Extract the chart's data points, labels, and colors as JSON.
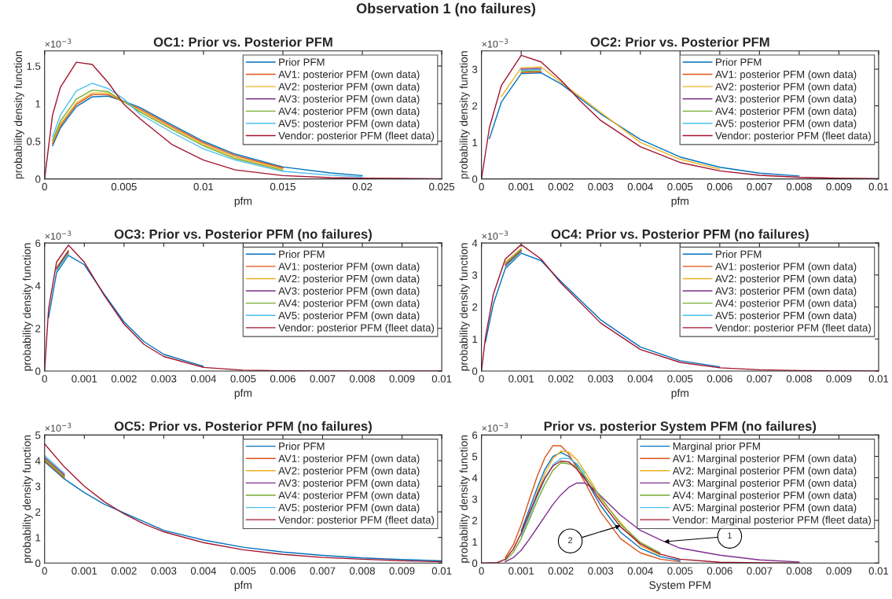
{
  "chart_data": [
    {
      "type": "line",
      "title": "OC1: Prior vs. Posterior PFM",
      "xlabel": "pfm",
      "ylabel": "probability density function",
      "annotations": [
        "Observation 1 (no failures)",
        "×10$^{−3}$"
      ],
      "xlim": [
        0,
        0.025
      ],
      "xticks": [
        0,
        0.005,
        0.01,
        0.015,
        0.02,
        0.025
      ],
      "ylim": [
        0,
        1.7
      ],
      "yticks": [
        0,
        0.5,
        1,
        1.5
      ],
      "legend": "top right",
      "grid": false,
      "x": [
        0,
        0.0005,
        0.001,
        0.002,
        0.003,
        0.004,
        0.005,
        0.006,
        0.008,
        0.01,
        0.012,
        0.015,
        0.018,
        0.02,
        0.025
      ],
      "series": [
        {
          "name": "Prior PFM",
          "color": "#0072bd",
          "values": [
            null,
            0.44,
            0.68,
            0.96,
            1.09,
            1.1,
            1.03,
            0.95,
            0.72,
            0.5,
            0.33,
            0.16,
            0.08,
            0.045,
            null
          ]
        },
        {
          "name": "AV1: posterior PFM (own data)",
          "color": "#d95319",
          "values": [
            null,
            0.47,
            0.71,
            0.99,
            1.12,
            1.12,
            null,
            0.93,
            0.7,
            0.48,
            0.31,
            0.145,
            null,
            null,
            null
          ]
        },
        {
          "name": "AV2: posterior PFM (own data)",
          "color": "#edb120",
          "values": [
            null,
            0.49,
            0.73,
            1.01,
            1.14,
            1.14,
            null,
            0.91,
            0.68,
            0.46,
            0.29,
            0.13,
            null,
            null,
            null
          ]
        },
        {
          "name": "AV3: posterior PFM (own data)",
          "color": "#7e2f8e",
          "values": [
            null,
            null,
            null,
            null,
            null,
            null,
            null,
            null,
            null,
            null,
            null,
            null,
            null,
            null,
            null
          ]
        },
        {
          "name": "AV4: posterior PFM (own data)",
          "color": "#77ac30",
          "values": [
            null,
            0.51,
            0.77,
            1.06,
            1.18,
            1.16,
            null,
            0.89,
            0.66,
            0.44,
            0.27,
            0.115,
            null,
            null,
            null
          ]
        },
        {
          "name": "AV5: posterior PFM (own data)",
          "color": "#4dbeee",
          "values": [
            null,
            0.56,
            0.85,
            1.17,
            1.27,
            1.2,
            1.06,
            0.86,
            0.62,
            0.4,
            0.25,
            0.1,
            0.05,
            0.028,
            null
          ]
        },
        {
          "name": "Vendor: posterior PFM (fleet data)",
          "color": "#a2142f",
          "values": [
            0,
            0.85,
            1.22,
            1.55,
            1.52,
            1.28,
            0.99,
            0.8,
            0.46,
            0.25,
            0.12,
            0.045,
            0.017,
            0.01,
            0.002
          ]
        }
      ]
    },
    {
      "type": "line",
      "title": "OC2: Prior vs. Posterior PFM",
      "xlabel": "pfm",
      "ylabel": "probability density function",
      "annotations": [
        "×10$^{−3}$"
      ],
      "xlim": [
        0,
        0.01
      ],
      "xticks": [
        0,
        0.001,
        0.002,
        0.003,
        0.004,
        0.005,
        0.006,
        0.007,
        0.008,
        0.009,
        0.01
      ],
      "ylim": [
        0,
        3.5
      ],
      "yticks": [
        0,
        1,
        2,
        3
      ],
      "legend": "top right",
      "grid": false,
      "x": [
        0,
        0.0002,
        0.0005,
        0.001,
        0.0015,
        0.002,
        0.0025,
        0.003,
        0.004,
        0.005,
        0.006,
        0.007,
        0.008,
        0.009,
        0.01
      ],
      "series": [
        {
          "name": "Prior PFM",
          "color": "#0072bd",
          "values": [
            null,
            1.1,
            2.1,
            2.88,
            2.9,
            2.6,
            null,
            1.78,
            1.08,
            0.6,
            0.32,
            0.16,
            0.08,
            null,
            null
          ]
        },
        {
          "name": "AV1: posterior PFM (own data)",
          "color": "#d95319",
          "values": [
            null,
            null,
            null,
            2.91,
            2.93,
            null,
            null,
            null,
            null,
            null,
            null,
            null,
            null,
            null,
            null
          ]
        },
        {
          "name": "AV2: posterior PFM (own data)",
          "color": "#edb120",
          "values": [
            null,
            null,
            2.25,
            3.04,
            3.06,
            null,
            null,
            null,
            1.0,
            0.54,
            0.27,
            null,
            null,
            null,
            null
          ]
        },
        {
          "name": "AV3: posterior PFM (own data)",
          "color": "#7e2f8e",
          "values": [
            null,
            null,
            null,
            3.0,
            3.02,
            null,
            null,
            null,
            null,
            null,
            null,
            null,
            null,
            null,
            null
          ]
        },
        {
          "name": "AV4: posterior PFM (own data)",
          "color": "#77ac30",
          "values": [
            null,
            null,
            null,
            2.94,
            2.96,
            null,
            null,
            null,
            null,
            null,
            null,
            null,
            null,
            null,
            null
          ]
        },
        {
          "name": "AV5: posterior PFM (own data)",
          "color": "#4dbeee",
          "values": [
            null,
            null,
            null,
            2.97,
            2.99,
            null,
            null,
            null,
            null,
            null,
            null,
            null,
            null,
            null,
            null
          ]
        },
        {
          "name": "Vendor: posterior PFM (fleet data)",
          "color": "#a2142f",
          "values": [
            0,
            1.4,
            2.55,
            3.38,
            3.2,
            2.7,
            2.12,
            1.6,
            0.88,
            0.45,
            0.22,
            0.1,
            0.045,
            0.02,
            0.008
          ]
        }
      ]
    },
    {
      "type": "line",
      "title": "OC3: Prior vs. Posterior PFM (no failures)",
      "xlabel": "pfm",
      "ylabel": "probability density function",
      "annotations": [
        "×10$^{−3}$"
      ],
      "xlim": [
        0,
        0.01
      ],
      "xticks": [
        0,
        0.001,
        0.002,
        0.003,
        0.004,
        0.005,
        0.006,
        0.007,
        0.008,
        0.009,
        0.01
      ],
      "ylim": [
        0,
        6
      ],
      "yticks": [
        0,
        2,
        4,
        6
      ],
      "legend": "top right",
      "grid": false,
      "x": [
        0,
        0.0001,
        0.0003,
        0.0006,
        0.001,
        0.0015,
        0.002,
        0.0025,
        0.003,
        0.004,
        0.005,
        0.006,
        0.008,
        0.01
      ],
      "series": [
        {
          "name": "Prior PFM",
          "color": "#0072bd",
          "values": [
            null,
            2.5,
            4.6,
            5.42,
            4.98,
            3.6,
            2.3,
            1.38,
            0.78,
            0.22,
            null,
            null,
            null,
            null
          ]
        },
        {
          "name": "AV1: posterior PFM (own data)",
          "color": "#d95319",
          "values": [
            null,
            null,
            4.76,
            5.57,
            null,
            null,
            null,
            null,
            null,
            null,
            null,
            null,
            null,
            null
          ]
        },
        {
          "name": "AV2: posterior PFM (own data)",
          "color": "#edb120",
          "values": [
            null,
            null,
            4.86,
            5.67,
            null,
            null,
            null,
            null,
            null,
            null,
            null,
            null,
            null,
            null
          ]
        },
        {
          "name": "AV3: posterior PFM (own data)",
          "color": "#7e2f8e",
          "values": [
            null,
            null,
            4.81,
            5.62,
            null,
            null,
            null,
            null,
            null,
            null,
            null,
            null,
            null,
            null
          ]
        },
        {
          "name": "AV4: posterior PFM (own data)",
          "color": "#77ac30",
          "values": [
            null,
            null,
            4.71,
            5.52,
            null,
            null,
            null,
            null,
            null,
            null,
            null,
            null,
            null,
            null
          ]
        },
        {
          "name": "AV5: posterior PFM (own data)",
          "color": "#4dbeee",
          "values": [
            null,
            null,
            4.66,
            5.47,
            null,
            null,
            null,
            null,
            null,
            null,
            null,
            null,
            null,
            null
          ]
        },
        {
          "name": "Vendor: posterior PFM (fleet data)",
          "color": "#a2142f",
          "values": [
            0,
            2.9,
            5.1,
            5.9,
            5.1,
            3.55,
            2.2,
            1.25,
            0.68,
            0.17,
            0.04,
            0.009,
            0.001,
            0
          ]
        }
      ]
    },
    {
      "type": "line",
      "title": "OC4: Prior vs. Posterior PFM (no failures)",
      "xlabel": "pfm",
      "ylabel": "probability density function",
      "annotations": [
        "×10$^{−3}$"
      ],
      "xlim": [
        0,
        0.01
      ],
      "xticks": [
        0,
        0.001,
        0.002,
        0.003,
        0.004,
        0.005,
        0.006,
        0.007,
        0.008,
        0.009,
        0.01
      ],
      "ylim": [
        0,
        4
      ],
      "yticks": [
        0,
        1,
        2,
        3,
        4
      ],
      "legend": "top right",
      "grid": false,
      "x": [
        0,
        0.0001,
        0.0003,
        0.0006,
        0.001,
        0.0015,
        0.002,
        0.003,
        0.004,
        0.005,
        0.006,
        0.007,
        0.008,
        0.009,
        0.01
      ],
      "series": [
        {
          "name": "Prior PFM",
          "color": "#0072bd",
          "values": [
            null,
            0.9,
            2.1,
            3.2,
            3.68,
            3.45,
            2.8,
            1.6,
            0.75,
            0.32,
            0.13,
            null,
            null,
            null,
            null
          ]
        },
        {
          "name": "AV1: posterior PFM (own data)",
          "color": "#d95319",
          "values": [
            null,
            null,
            null,
            3.28,
            3.74,
            null,
            null,
            null,
            null,
            null,
            null,
            null,
            null,
            null,
            null
          ]
        },
        {
          "name": "AV2: posterior PFM (own data)",
          "color": "#edb120",
          "values": [
            null,
            null,
            null,
            3.4,
            3.83,
            null,
            null,
            null,
            null,
            null,
            null,
            null,
            null,
            null,
            null
          ]
        },
        {
          "name": "AV3: posterior PFM (own data)",
          "color": "#7e2f8e",
          "values": [
            null,
            null,
            null,
            3.32,
            3.77,
            null,
            null,
            null,
            null,
            null,
            null,
            null,
            null,
            null,
            null
          ]
        },
        {
          "name": "AV4: posterior PFM (own data)",
          "color": "#77ac30",
          "values": [
            null,
            null,
            null,
            3.36,
            3.8,
            null,
            null,
            null,
            null,
            null,
            null,
            null,
            null,
            null,
            null
          ]
        },
        {
          "name": "AV5: posterior PFM (own data)",
          "color": "#4dbeee",
          "values": [
            null,
            null,
            null,
            3.24,
            3.71,
            null,
            null,
            null,
            null,
            null,
            null,
            null,
            null,
            null,
            null
          ]
        },
        {
          "name": "Vendor: posterior PFM (fleet data)",
          "color": "#a2142f",
          "values": [
            0,
            1.05,
            2.4,
            3.5,
            3.95,
            3.5,
            2.75,
            1.5,
            0.67,
            0.27,
            0.1,
            0.04,
            0.014,
            0.005,
            0.002
          ]
        }
      ]
    },
    {
      "type": "line",
      "title": "OC5: Prior vs. Posterior PFM (no failures)",
      "xlabel": "pfm",
      "ylabel": "probability density function",
      "annotations": [
        "×10$^{−3}$"
      ],
      "xlim": [
        0,
        0.01
      ],
      "xticks": [
        0,
        0.001,
        0.002,
        0.003,
        0.004,
        0.005,
        0.006,
        0.007,
        0.008,
        0.009,
        0.01
      ],
      "ylim": [
        0,
        5
      ],
      "yticks": [
        0,
        1,
        2,
        3,
        4,
        5
      ],
      "legend": "top right",
      "grid": false,
      "x": [
        0,
        0.0005,
        0.001,
        0.0015,
        0.002,
        0.0025,
        0.003,
        0.004,
        0.005,
        0.006,
        0.007,
        0.008,
        0.009,
        0.01
      ],
      "series": [
        {
          "name": "Prior PFM",
          "color": "#0072bd",
          "values": [
            3.96,
            3.28,
            2.75,
            2.3,
            null,
            null,
            1.28,
            0.9,
            0.62,
            0.43,
            0.3,
            0.2,
            0.14,
            0.085
          ]
        },
        {
          "name": "AV1: posterior PFM (own data)",
          "color": "#d95319",
          "values": [
            4.0,
            3.32,
            null,
            null,
            null,
            null,
            null,
            null,
            null,
            null,
            null,
            null,
            null,
            null
          ]
        },
        {
          "name": "AV2: posterior PFM (own data)",
          "color": "#edb120",
          "values": [
            4.08,
            3.4,
            null,
            null,
            null,
            null,
            null,
            null,
            null,
            null,
            null,
            null,
            null,
            null
          ]
        },
        {
          "name": "AV3: posterior PFM (own data)",
          "color": "#7e2f8e",
          "values": [
            4.12,
            3.44,
            null,
            null,
            null,
            null,
            null,
            null,
            null,
            null,
            null,
            null,
            null,
            null
          ]
        },
        {
          "name": "AV4: posterior PFM (own data)",
          "color": "#77ac30",
          "values": [
            4.04,
            3.36,
            null,
            null,
            null,
            null,
            null,
            null,
            null,
            null,
            null,
            null,
            null,
            null
          ]
        },
        {
          "name": "AV5: posterior PFM (own data)",
          "color": "#4dbeee",
          "values": [
            4.2,
            3.5,
            null,
            null,
            null,
            null,
            null,
            null,
            null,
            null,
            null,
            null,
            null,
            null
          ]
        },
        {
          "name": "Vendor: posterior PFM (fleet data)",
          "color": "#a2142f",
          "values": [
            4.65,
            3.75,
            3.0,
            2.4,
            1.92,
            1.53,
            1.22,
            0.8,
            0.52,
            0.34,
            0.22,
            0.15,
            0.09,
            0.05
          ]
        }
      ]
    },
    {
      "type": "line",
      "title": "Prior vs. posterior System PFM (no failures)",
      "xlabel": "System PFM",
      "ylabel": "probability density function",
      "annotations": [
        "×10$^{−3}$",
        {
          "text": "1",
          "x": 0.0046,
          "y": 1.0
        },
        {
          "text": "2",
          "x": 0.0035,
          "y": 1.75
        }
      ],
      "xlim": [
        0,
        0.01
      ],
      "xticks": [
        0,
        0.001,
        0.002,
        0.003,
        0.004,
        0.005,
        0.006,
        0.007,
        0.008,
        0.009,
        0.01
      ],
      "ylim": [
        0,
        6
      ],
      "yticks": [
        0,
        1,
        2,
        3,
        4,
        5,
        6
      ],
      "legend": "top right",
      "grid": false,
      "x": [
        0,
        0.0004,
        0.0006,
        0.0008,
        0.001,
        0.0012,
        0.0014,
        0.0016,
        0.0018,
        0.002,
        0.0022,
        0.0024,
        0.0026,
        0.0028,
        0.003,
        0.0035,
        0.004,
        0.0045,
        0.005,
        0.006,
        0.007,
        0.008
      ],
      "series": [
        {
          "name": "Marginal prior PFM",
          "color": "#0072bd",
          "values": [
            null,
            null,
            null,
            null,
            1.5,
            2.5,
            3.5,
            4.4,
            5.0,
            5.18,
            5.0,
            4.58,
            4.0,
            3.35,
            2.7,
            1.45,
            0.7,
            0.3,
            0.12,
            null,
            null,
            null
          ]
        },
        {
          "name": "AV1: Marginal posterior PFM (own data)",
          "color": "#d95319",
          "values": [
            null,
            null,
            0.26,
            0.85,
            1.8,
            2.95,
            4.05,
            4.95,
            5.5,
            5.5,
            5.1,
            4.45,
            3.8,
            3.1,
            2.4,
            1.15,
            0.48,
            0.18,
            0.06,
            null,
            null,
            null
          ]
        },
        {
          "name": "AV2: Marginal posterior PFM (own data)",
          "color": "#edb120",
          "values": [
            null,
            null,
            null,
            null,
            1.35,
            2.22,
            3.3,
            4.2,
            4.9,
            5.24,
            5.2,
            4.85,
            4.3,
            3.7,
            3.0,
            null,
            0.82,
            0.37,
            null,
            null,
            null,
            null
          ]
        },
        {
          "name": "AV3: Marginal posterior PFM (own data)",
          "color": "#7e2f8e",
          "values": [
            null,
            null,
            0.06,
            0.25,
            0.6,
            1.1,
            1.65,
            2.2,
            2.75,
            3.2,
            3.55,
            3.75,
            3.75,
            3.5,
            3.15,
            2.25,
            1.53,
            1.09,
            0.7,
            0.37,
            0.15,
            0.05
          ]
        },
        {
          "name": "AV4: Marginal posterior PFM (own data)",
          "color": "#77ac30",
          "values": [
            null,
            null,
            0.12,
            0.5,
            1.15,
            2.0,
            2.9,
            3.7,
            4.35,
            4.7,
            4.65,
            4.52,
            4.1,
            3.58,
            3.08,
            1.82,
            0.97,
            0.48,
            null,
            null,
            null,
            null
          ]
        },
        {
          "name": "AV5: Marginal posterior PFM (own data)",
          "color": "#4dbeee",
          "values": [
            null,
            null,
            null,
            null,
            1.25,
            2.15,
            3.1,
            3.95,
            4.6,
            4.9,
            4.9,
            4.66,
            4.2,
            null,
            null,
            null,
            null,
            null,
            null,
            null,
            null,
            null
          ]
        },
        {
          "name": "Vendor: Marginal posterior PFM (fleet data)",
          "color": "#a2142f",
          "values": [
            0,
            0.02,
            0.18,
            0.65,
            1.4,
            2.32,
            3.2,
            4.0,
            4.55,
            4.78,
            4.74,
            4.4,
            3.95,
            3.45,
            2.9,
            1.7,
            0.9,
            0.42,
            0.18,
            0.04,
            0.01,
            0
          ]
        }
      ]
    }
  ]
}
